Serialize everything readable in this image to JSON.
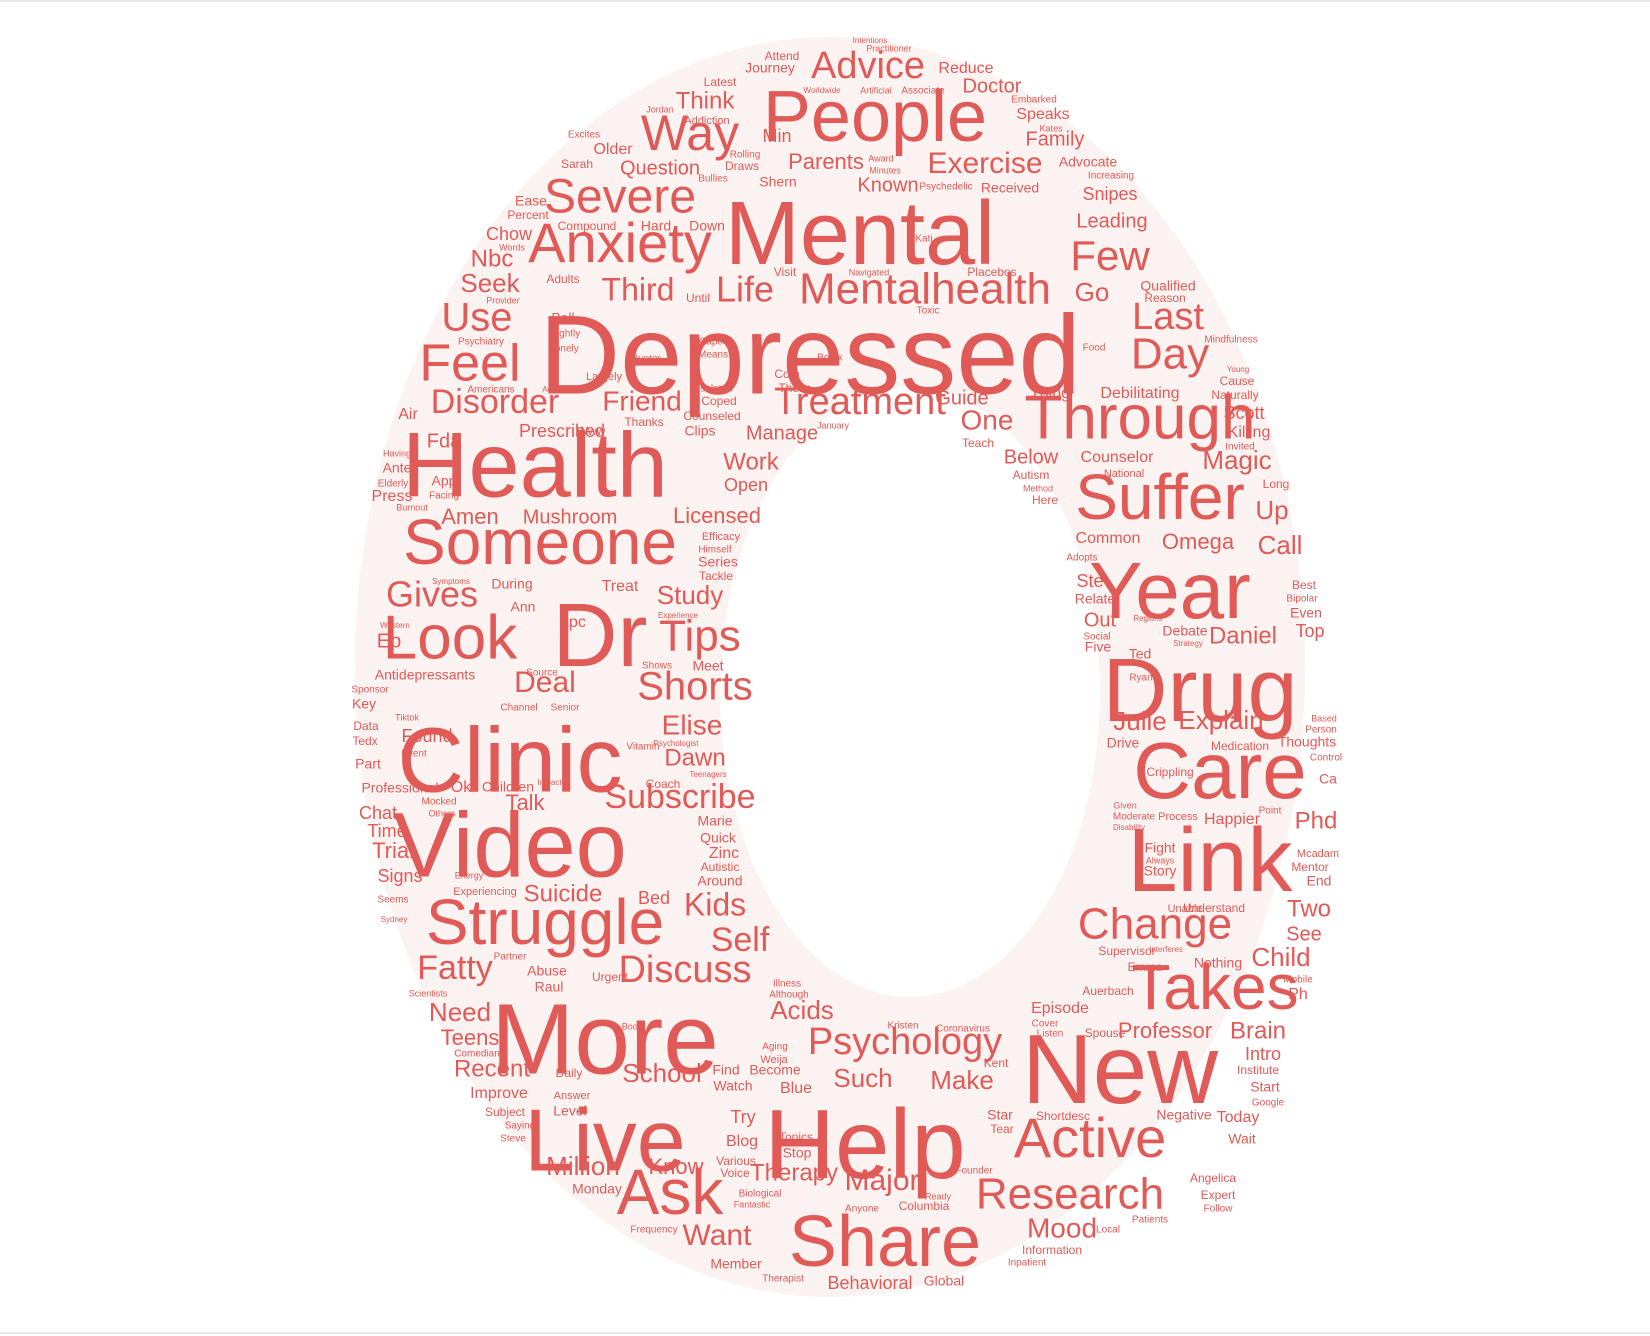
{
  "colors": {
    "word": "#e05a57",
    "shape_fill": "#fbf3f1",
    "background": "#ffffff",
    "frame": "#e8e8e8"
  },
  "cloud": {
    "shape": "O",
    "words": [
      "Depressed",
      "Mental",
      "Health",
      "Video",
      "Clinic",
      "More",
      "Help",
      "Live",
      "New",
      "Drug",
      "Link",
      "Year",
      "Care",
      "Dr",
      "Someone",
      "Struggle",
      "Share",
      "Takes",
      "People",
      "Anxiety",
      "Suffer",
      "Through",
      "Active",
      "Look",
      "Research",
      "Ask",
      "Mentalhealth",
      "Severe",
      "Change",
      "Feel",
      "Way",
      "Subscribe",
      "Shorts",
      "Psychology",
      "Tips",
      "Treatment",
      "Disorder",
      "Day",
      "Last",
      "Few",
      "Life",
      "Discuss",
      "Third",
      "Gives",
      "Advice",
      "Exercise",
      "Mood",
      "Major",
      "Fatty",
      "Kids",
      "Use",
      "Self",
      "Friend",
      "Therapy",
      "Deal",
      "Elise",
      "Suicide",
      "Want",
      "Acids",
      "Magic",
      "Professor",
      "Daniel",
      "Omega",
      "Julie",
      "Explain",
      "Call",
      "Brain",
      "Child",
      "Two",
      "Phd",
      "Million",
      "Know",
      "Recent",
      "Need",
      "Teens",
      "Such",
      "Make",
      "School",
      "Study",
      "Dawn",
      "Talk",
      "Seek",
      "Nbc",
      "Chow",
      "Air",
      "Press",
      "Fda",
      "Amen",
      "Mushroom",
      "Licensed",
      "Manage",
      "Work",
      "Open",
      "Prescribed",
      "One",
      "Below",
      "Counselor",
      "Guide",
      "Thing",
      "Debilitating",
      "Scott",
      "Killing",
      "Invited",
      "Long",
      "Up",
      "Common",
      "Ste",
      "Relate",
      "Out",
      "Five",
      "Ted",
      "Ryan",
      "Debate",
      "Top",
      "Best",
      "Bipolar",
      "Even",
      "Thoughts",
      "Medication",
      "Control",
      "Happier",
      "Point",
      "Fight",
      "Story",
      "Mentor",
      "End",
      "Understand",
      "Unable",
      "Nothing",
      "See",
      "Supervisor",
      "Emma",
      "Auerbach",
      "Episode",
      "Spouse",
      "Listen",
      "Cover",
      "Intro",
      "Institute",
      "Start",
      "Negative",
      "Today",
      "Wait",
      "Angelica",
      "Expert",
      "Follow",
      "Patients",
      "Local",
      "Information",
      "Inpatient",
      "Global",
      "Behavioral",
      "Member",
      "Therapist",
      "Frequency",
      "Monday",
      "Answer",
      "Level",
      "Daily",
      "Comedian",
      "Improve",
      "Subject",
      "Saying",
      "Steve",
      "Partner",
      "Abuse",
      "Raul",
      "Urgent",
      "Scientists",
      "Signs",
      "Trial",
      "Time",
      "Chat",
      "Professional",
      "Ok",
      "Children",
      "Part",
      "Tedx",
      "Data",
      "Key",
      "Sponsor",
      "Antidepressants",
      "Ep",
      "During",
      "Ann",
      "Lpc",
      "Treat",
      "Meet",
      "Shows",
      "Source",
      "Channel",
      "Senior",
      "Found",
      "Event",
      "Tiktok",
      "Vitamin",
      "Coach",
      "Marie",
      "Quick",
      "Zinc",
      "Autistic",
      "Around",
      "Bed",
      "Illness",
      "Although",
      "Book",
      "Aging",
      "Weija",
      "Find",
      "Become",
      "Watch",
      "Blue",
      "Try",
      "Blog",
      "Topics",
      "Stop",
      "Voice",
      "Various",
      "Biological",
      "Fantastic",
      "Columbia",
      "Anyone",
      "Ready",
      "Founder",
      "Star",
      "Tear",
      "Shortdesc",
      "Kent",
      "Kristen",
      "Coronavirus",
      "Doctor",
      "Reduce",
      "Journey",
      "Attend",
      "Latest",
      "Think",
      "Min",
      "Parents",
      "Family",
      "Speaks",
      "Advocate",
      "Known",
      "Received",
      "Snipes",
      "Leading",
      "Go",
      "Qualified",
      "Reason",
      "Mindfulness",
      "Food",
      "Cause",
      "Naturally",
      "Young",
      "Older",
      "Question",
      "Sarah",
      "Excites",
      "Jordan",
      "Addiction",
      "Rolling",
      "Draws",
      "Shern",
      "Bullies",
      "Psychedelic",
      "Minutes",
      "Award",
      "Ease",
      "Percent",
      "Compound",
      "Hard",
      "Down",
      "Words",
      "Visit",
      "Placebos",
      "Navigated",
      "Kati",
      "Toxic",
      "Adults",
      "Bell",
      "Nightly",
      "Lonely",
      "Cape",
      "Means",
      "Hunter",
      "Largely",
      "Com",
      "Those",
      "Botox",
      "Isolated",
      "Coped",
      "Counseled",
      "Clips",
      "Thanks",
      "Www",
      "Americans",
      "According",
      "January",
      "Provider",
      "Psychiatry",
      "Until",
      "Having",
      "Ante",
      "Elderly",
      "App",
      "Facing",
      "Burnout",
      "Autism",
      "Method",
      "Here",
      "National",
      "Efficacy",
      "Himself",
      "Series",
      "Tackle",
      "Symptoms",
      "Experience",
      "Western",
      "Regions",
      "Strategy",
      "Social",
      "Adopts",
      "Based",
      "Person",
      "Drive",
      "Crippling",
      "Given",
      "Moderate",
      "Process",
      "Disability",
      "Always",
      "Mcadam",
      "Ca",
      "Ph",
      "Mobile",
      "Interferes",
      "Google",
      "Energy",
      "Seems",
      "Sydney",
      "Experiencing",
      "Mocked",
      "Others",
      "Impacted",
      "Teenagers",
      "Psychologist",
      "Practitioner",
      "Embarked",
      "Kates",
      "Increasing",
      "Associate",
      "Artificial",
      "Worldwide",
      "Intentions",
      "Teach"
    ]
  }
}
